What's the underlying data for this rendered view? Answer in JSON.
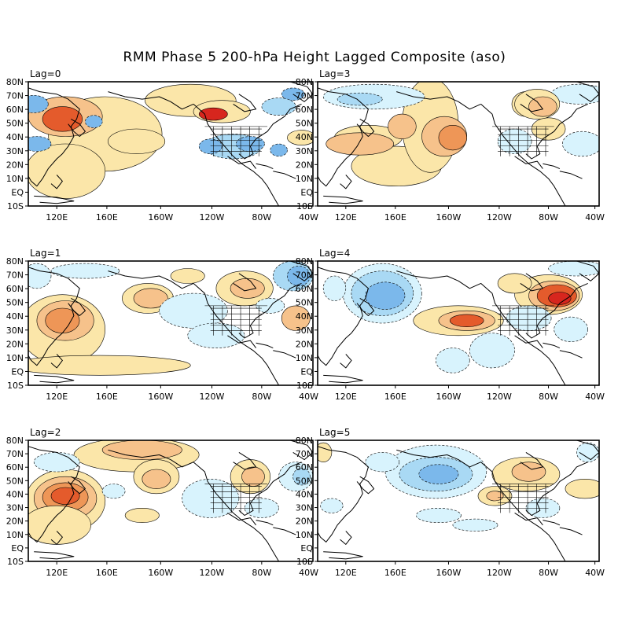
{
  "title": "RMM Phase 5 200-hPa Height Lagged Composite (aso)",
  "axes": {
    "lat_labels": [
      "80N",
      "70N",
      "60N",
      "50N",
      "40N",
      "30N",
      "20N",
      "10N",
      "EQ",
      "10S"
    ],
    "lon_labels": [
      "120E",
      "160E",
      "160W",
      "120W",
      "80W",
      "40W"
    ]
  },
  "shading_colors": {
    "pos_1": "#fbe6a9",
    "pos_2": "#f6c28b",
    "pos_3": "#ee9657",
    "pos_4": "#e45b2c",
    "pos_5": "#d7261e",
    "neg_1": "#d8f3fd",
    "neg_2": "#a9d9f4",
    "neg_3": "#7bb8eb",
    "neg_4": "#4b8fe0"
  },
  "panels": [
    {
      "label": "Lag=0"
    },
    {
      "label": "Lag=3"
    },
    {
      "label": "Lag=1"
    },
    {
      "label": "Lag=4"
    },
    {
      "label": "Lag=2"
    },
    {
      "label": "Lag=5"
    }
  ]
}
